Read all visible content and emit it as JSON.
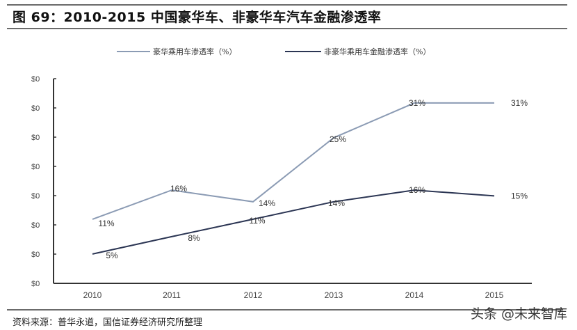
{
  "header": {
    "title": "图 69：2010-2015 中国豪华车、非豪华车汽车金融渗透率"
  },
  "footer": {
    "source": "资料来源：普华永道，国信证券经济研究所整理",
    "watermark": "头条 @未来智库"
  },
  "chart_data": {
    "type": "line",
    "title": "2010-2015 中国豪华车、非豪华车汽车金融渗透率",
    "xlabel": "",
    "ylabel": "",
    "categories": [
      "2010",
      "2011",
      "2012",
      "2013",
      "2014",
      "2015"
    ],
    "y_tick_labels": [
      "$0",
      "$0",
      "$0",
      "$0",
      "$0",
      "$0",
      "$0",
      "$0"
    ],
    "ylim": [
      0,
      35
    ],
    "grid": false,
    "legend_position": "top",
    "series": [
      {
        "name": "豪华乘用车渗透率（%）",
        "color": "#8b9bb4",
        "values": [
          11,
          16,
          14,
          25,
          31,
          31
        ],
        "labels": [
          "11%",
          "16%",
          "14%",
          "25%",
          "31%",
          "31%"
        ]
      },
      {
        "name": "非豪华乘用车金融渗透率（%）",
        "color": "#2b3553",
        "values": [
          5,
          8,
          11,
          14,
          16,
          15
        ],
        "labels": [
          "5%",
          "8%",
          "11%",
          "14%",
          "16%",
          "15%"
        ]
      }
    ]
  }
}
